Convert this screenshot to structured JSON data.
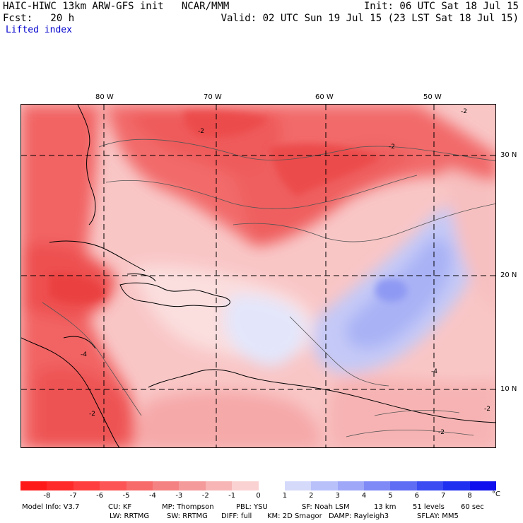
{
  "header": {
    "line1_left": "HAIC-HIWC 13km ARW-GFS init   NCAR/MMM",
    "line1_right": "Init: 06 UTC Sat 18 Jul 15",
    "line2_left": "Fcst:   20 h",
    "line2_right": "Valid: 02 UTC Sun 19 Jul 15 (23 LST Sat 18 Jul 15)",
    "field_name": "Lifted index"
  },
  "map": {
    "lon_labels": [
      "80 W",
      "70 W",
      "60 W",
      "50 W"
    ],
    "lat_labels": [
      "30 N",
      "20 N",
      "10 N"
    ],
    "contour_labels": [
      "-2",
      "-2",
      "-4",
      "-2",
      "-4",
      "-2",
      "-2",
      "-2"
    ]
  },
  "colorbar": {
    "ticks": [
      "-8",
      "-7",
      "-6",
      "-5",
      "-4",
      "-3",
      "-2",
      "-1",
      "0",
      "1",
      "2",
      "3",
      "4",
      "5",
      "6",
      "7",
      "8"
    ],
    "unit": "°C",
    "colors": [
      "#ff1a1a",
      "#ff2a2a",
      "#ff3f3f",
      "#fd5555",
      "#f86b6b",
      "#f58282",
      "#f59a9a",
      "#f7b5b5",
      "#fad2d2",
      "#ffffff",
      "#d5dafb",
      "#b9c1fa",
      "#9ea7f8",
      "#7f8af6",
      "#5f6cf4",
      "#3a4cf2",
      "#2030f0",
      "#1010ee"
    ]
  },
  "model_info": {
    "line1": [
      "Model Info: V3.7",
      "CU: KF",
      "MP: Thompson",
      "PBL: YSU",
      "SF: Noah LSM",
      "13 km",
      "51 levels",
      "60 sec"
    ],
    "line2": [
      "LW: RRTMG",
      "SW: RRTMG",
      "DIFF: full",
      "KM: 2D Smagor",
      "DAMP: Rayleigh3",
      "SFLAY: MM5"
    ]
  }
}
